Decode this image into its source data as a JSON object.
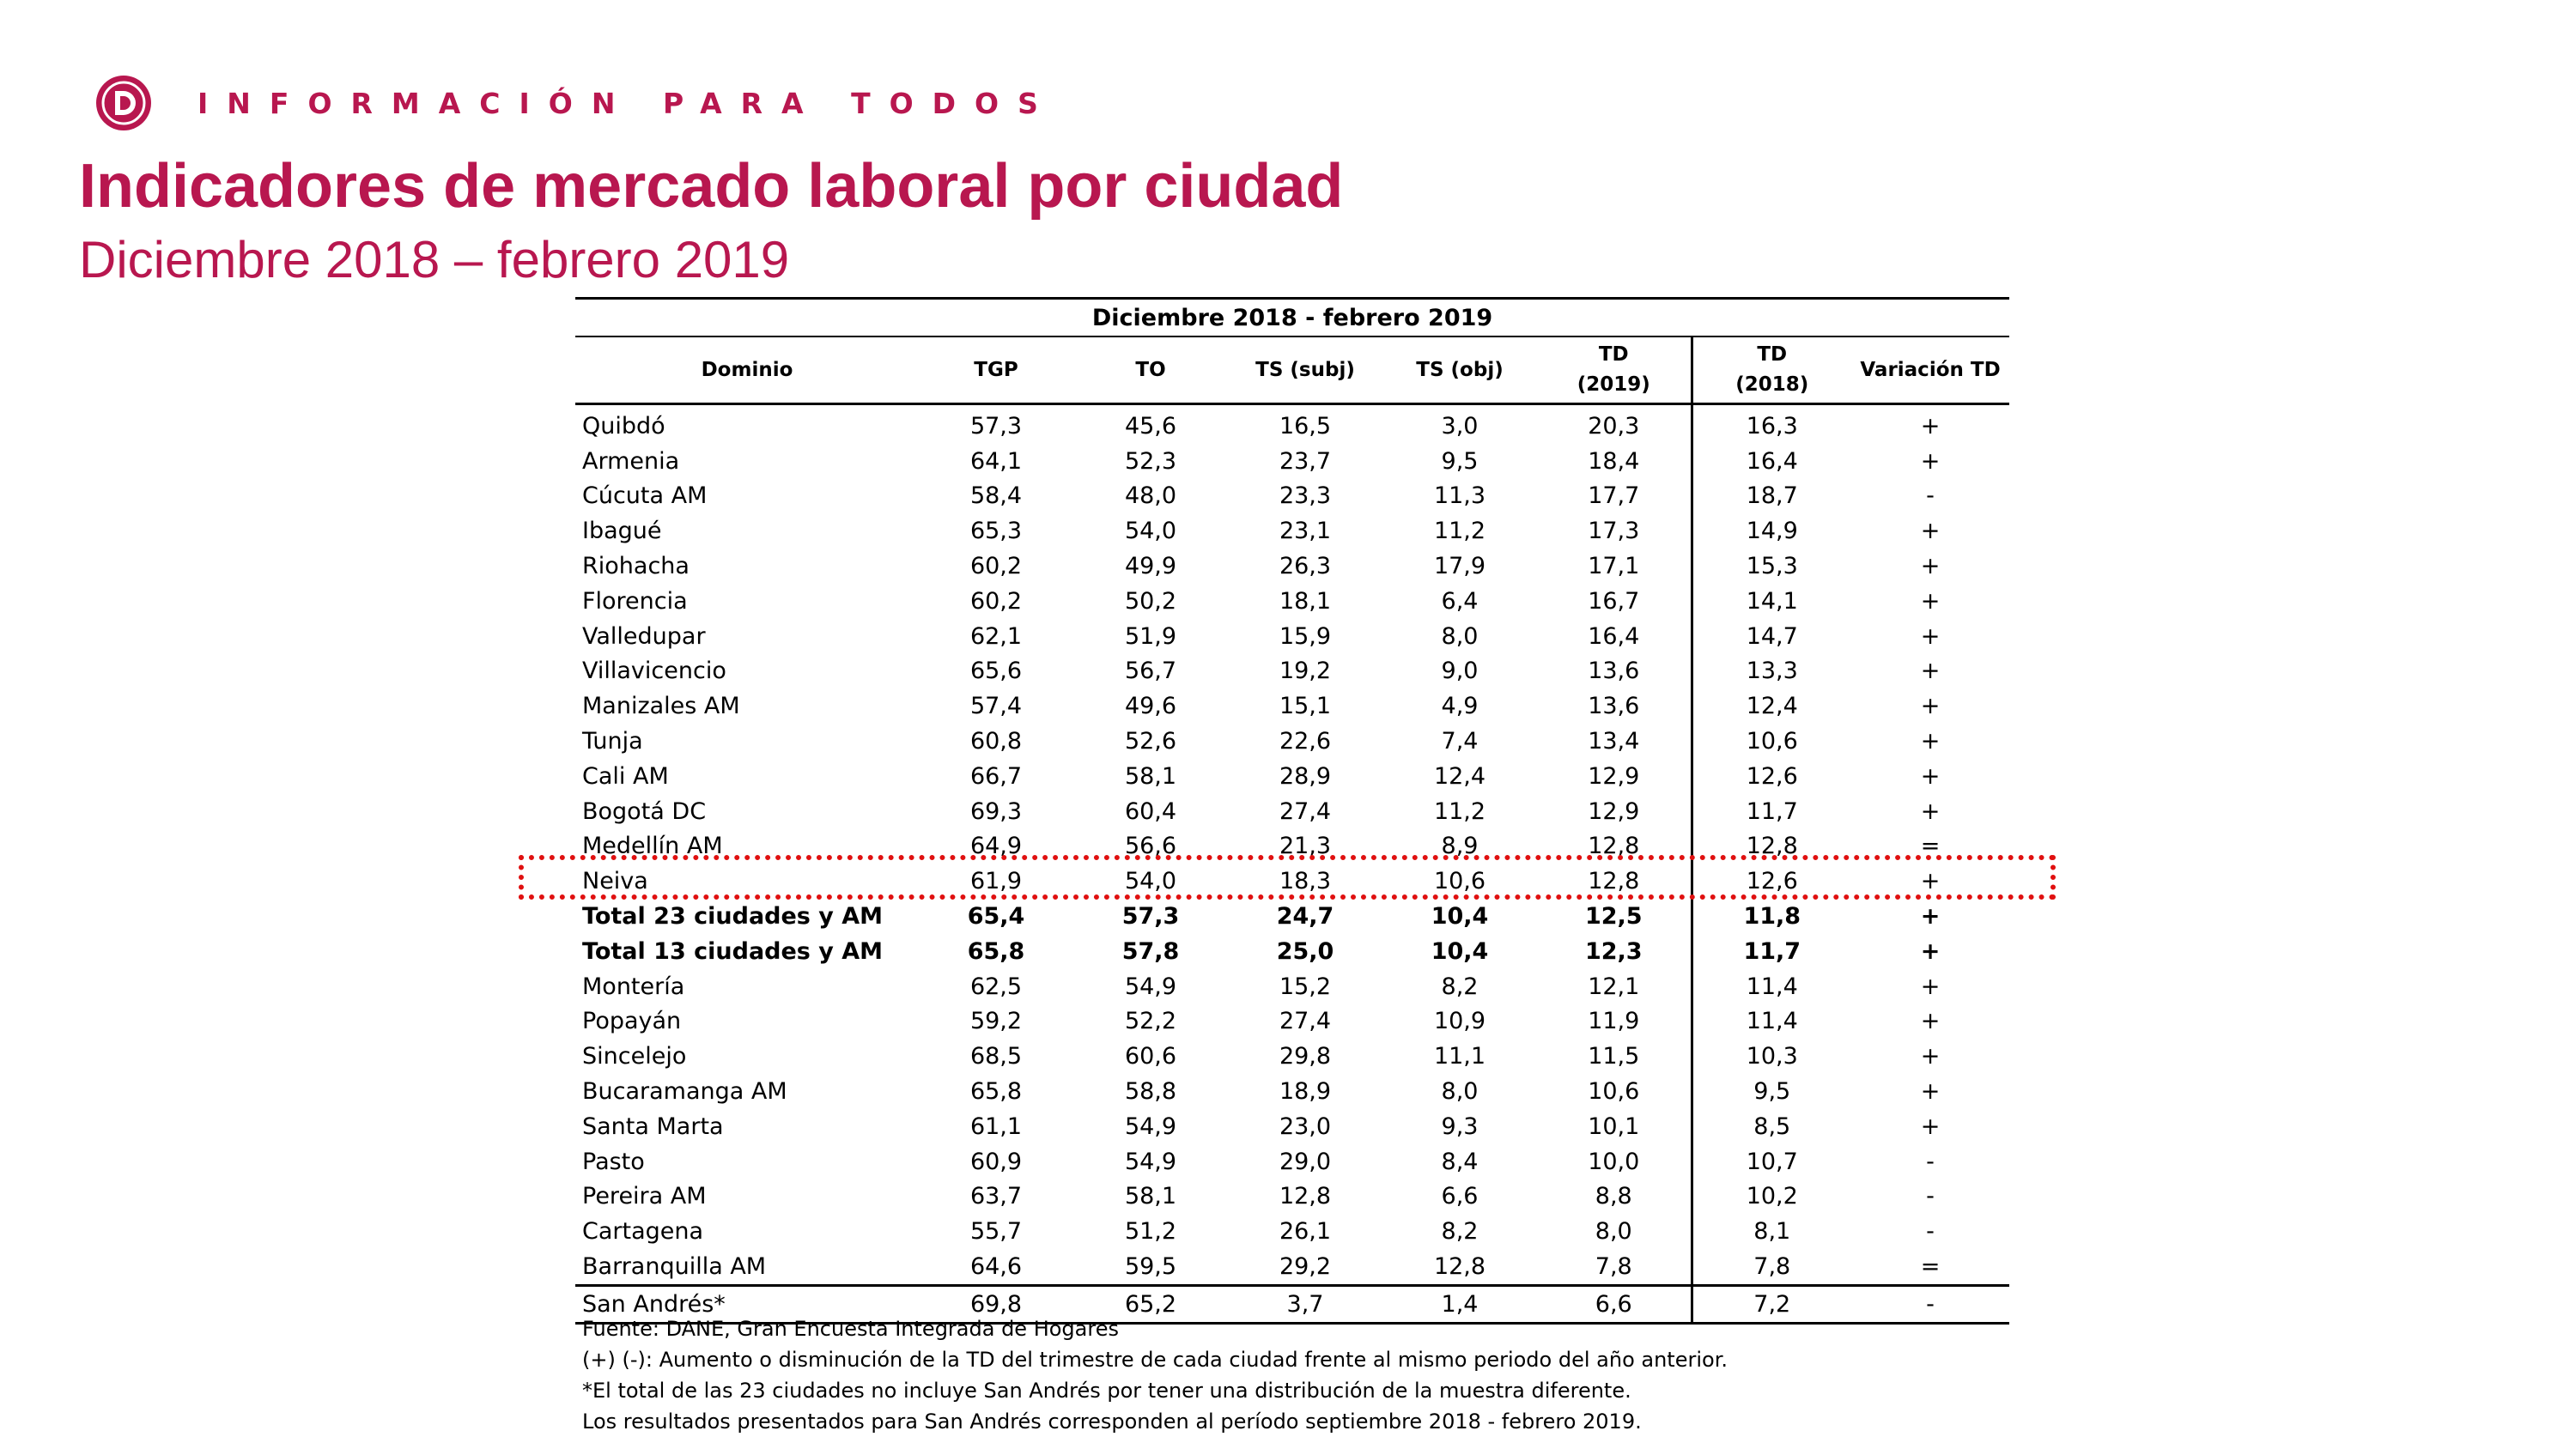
{
  "header": {
    "tagline": "INFORMACIÓN PARA TODOS",
    "title": "Indicadores de mercado laboral por ciudad",
    "subtitle": "Diciembre 2018 – febrero 2019"
  },
  "colors": {
    "brand": "#b8174f",
    "highlight": "#e01010"
  },
  "table": {
    "period": "Diciembre 2018 - febrero 2019",
    "columns": {
      "dominio": "Dominio",
      "tgp": "TGP",
      "to": "TO",
      "ts_subj": "TS (subj)",
      "ts_obj": "TS (obj)",
      "td2019_a": "TD",
      "td2019_b": "(2019)",
      "td2018_a": "TD",
      "td2018_b": "(2018)",
      "variacion": "Variación TD"
    },
    "rows": [
      {
        "dominio": "Quibdó",
        "tgp": "57,3",
        "to": "45,6",
        "ts_subj": "16,5",
        "ts_obj": "3,0",
        "td2019": "20,3",
        "td2018": "16,3",
        "var": "+"
      },
      {
        "dominio": "Armenia",
        "tgp": "64,1",
        "to": "52,3",
        "ts_subj": "23,7",
        "ts_obj": "9,5",
        "td2019": "18,4",
        "td2018": "16,4",
        "var": "+"
      },
      {
        "dominio": "Cúcuta AM",
        "tgp": "58,4",
        "to": "48,0",
        "ts_subj": "23,3",
        "ts_obj": "11,3",
        "td2019": "17,7",
        "td2018": "18,7",
        "var": "-"
      },
      {
        "dominio": "Ibagué",
        "tgp": "65,3",
        "to": "54,0",
        "ts_subj": "23,1",
        "ts_obj": "11,2",
        "td2019": "17,3",
        "td2018": "14,9",
        "var": "+"
      },
      {
        "dominio": "Riohacha",
        "tgp": "60,2",
        "to": "49,9",
        "ts_subj": "26,3",
        "ts_obj": "17,9",
        "td2019": "17,1",
        "td2018": "15,3",
        "var": "+"
      },
      {
        "dominio": "Florencia",
        "tgp": "60,2",
        "to": "50,2",
        "ts_subj": "18,1",
        "ts_obj": "6,4",
        "td2019": "16,7",
        "td2018": "14,1",
        "var": "+"
      },
      {
        "dominio": "Valledupar",
        "tgp": "62,1",
        "to": "51,9",
        "ts_subj": "15,9",
        "ts_obj": "8,0",
        "td2019": "16,4",
        "td2018": "14,7",
        "var": "+"
      },
      {
        "dominio": "Villavicencio",
        "tgp": "65,6",
        "to": "56,7",
        "ts_subj": "19,2",
        "ts_obj": "9,0",
        "td2019": "13,6",
        "td2018": "13,3",
        "var": "+"
      },
      {
        "dominio": "Manizales AM",
        "tgp": "57,4",
        "to": "49,6",
        "ts_subj": "15,1",
        "ts_obj": "4,9",
        "td2019": "13,6",
        "td2018": "12,4",
        "var": "+"
      },
      {
        "dominio": "Tunja",
        "tgp": "60,8",
        "to": "52,6",
        "ts_subj": "22,6",
        "ts_obj": "7,4",
        "td2019": "13,4",
        "td2018": "10,6",
        "var": "+"
      },
      {
        "dominio": "Cali AM",
        "tgp": "66,7",
        "to": "58,1",
        "ts_subj": "28,9",
        "ts_obj": "12,4",
        "td2019": "12,9",
        "td2018": "12,6",
        "var": "+"
      },
      {
        "dominio": "Bogotá DC",
        "tgp": "69,3",
        "to": "60,4",
        "ts_subj": "27,4",
        "ts_obj": "11,2",
        "td2019": "12,9",
        "td2018": "11,7",
        "var": "+"
      },
      {
        "dominio": "Medellín AM",
        "tgp": "64,9",
        "to": "56,6",
        "ts_subj": "21,3",
        "ts_obj": "8,9",
        "td2019": "12,8",
        "td2018": "12,8",
        "var": "="
      },
      {
        "dominio": "Neiva",
        "tgp": "61,9",
        "to": "54,0",
        "ts_subj": "18,3",
        "ts_obj": "10,6",
        "td2019": "12,8",
        "td2018": "12,6",
        "var": "+"
      },
      {
        "dominio": "Total 23 ciudades y AM",
        "tgp": "65,4",
        "to": "57,3",
        "ts_subj": "24,7",
        "ts_obj": "10,4",
        "td2019": "12,5",
        "td2018": "11,8",
        "var": "+"
      },
      {
        "dominio": "Total 13 ciudades y AM",
        "tgp": "65,8",
        "to": "57,8",
        "ts_subj": "25,0",
        "ts_obj": "10,4",
        "td2019": "12,3",
        "td2018": "11,7",
        "var": "+"
      },
      {
        "dominio": "Montería",
        "tgp": "62,5",
        "to": "54,9",
        "ts_subj": "15,2",
        "ts_obj": "8,2",
        "td2019": "12,1",
        "td2018": "11,4",
        "var": "+"
      },
      {
        "dominio": "Popayán",
        "tgp": "59,2",
        "to": "52,2",
        "ts_subj": "27,4",
        "ts_obj": "10,9",
        "td2019": "11,9",
        "td2018": "11,4",
        "var": "+"
      },
      {
        "dominio": "Sincelejo",
        "tgp": "68,5",
        "to": "60,6",
        "ts_subj": "29,8",
        "ts_obj": "11,1",
        "td2019": "11,5",
        "td2018": "10,3",
        "var": "+"
      },
      {
        "dominio": "Bucaramanga AM",
        "tgp": "65,8",
        "to": "58,8",
        "ts_subj": "18,9",
        "ts_obj": "8,0",
        "td2019": "10,6",
        "td2018": "9,5",
        "var": "+"
      },
      {
        "dominio": "Santa Marta",
        "tgp": "61,1",
        "to": "54,9",
        "ts_subj": "23,0",
        "ts_obj": "9,3",
        "td2019": "10,1",
        "td2018": "8,5",
        "var": "+"
      },
      {
        "dominio": "Pasto",
        "tgp": "60,9",
        "to": "54,9",
        "ts_subj": "29,0",
        "ts_obj": "8,4",
        "td2019": "10,0",
        "td2018": "10,7",
        "var": "-"
      },
      {
        "dominio": "Pereira AM",
        "tgp": "63,7",
        "to": "58,1",
        "ts_subj": "12,8",
        "ts_obj": "6,6",
        "td2019": "8,8",
        "td2018": "10,2",
        "var": "-"
      },
      {
        "dominio": "Cartagena",
        "tgp": "55,7",
        "to": "51,2",
        "ts_subj": "26,1",
        "ts_obj": "8,2",
        "td2019": "8,0",
        "td2018": "8,1",
        "var": "-"
      },
      {
        "dominio": "Barranquilla AM",
        "tgp": "64,6",
        "to": "59,5",
        "ts_subj": "29,2",
        "ts_obj": "12,8",
        "td2019": "7,8",
        "td2018": "7,8",
        "var": "="
      },
      {
        "dominio": "San Andrés*",
        "tgp": "69,8",
        "to": "65,2",
        "ts_subj": "3,7",
        "ts_obj": "1,4",
        "td2019": "6,6",
        "td2018": "7,2",
        "var": "-"
      }
    ]
  },
  "notes": [
    "Fuente: DANE, Gran Encuesta Integrada de Hogares",
    "(+) (-): Aumento o disminución de la TD del trimestre de cada ciudad frente al mismo periodo del año anterior.",
    "*El total de las 23 ciudades no incluye San Andrés por tener una distribución de la muestra diferente.",
    "Los resultados presentados para San Andrés corresponden al período septiembre 2018 - febrero 2019."
  ]
}
